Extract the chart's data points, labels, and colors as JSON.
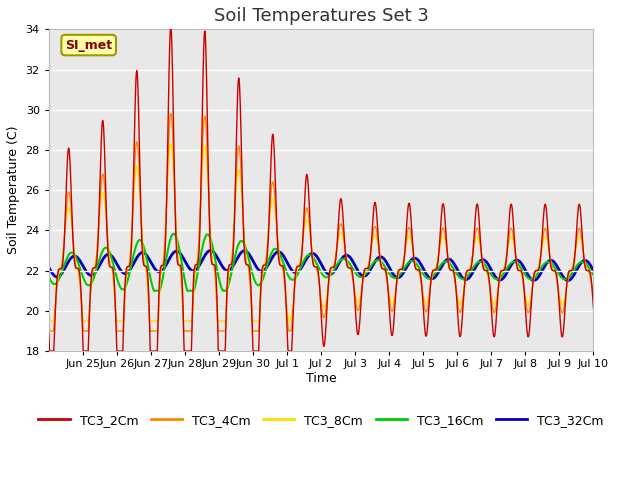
{
  "title": "Soil Temperatures Set 3",
  "xlabel": "Time",
  "ylabel": "Soil Temperature (C)",
  "ylim": [
    18,
    34
  ],
  "yticks": [
    18,
    20,
    22,
    24,
    26,
    28,
    30,
    32,
    34
  ],
  "series": [
    "TC3_2Cm",
    "TC3_4Cm",
    "TC3_8Cm",
    "TC3_16Cm",
    "TC3_32Cm"
  ],
  "colors": [
    "#cc0000",
    "#ff8800",
    "#ffdd00",
    "#00cc00",
    "#0000bb"
  ],
  "linewidths": [
    1.0,
    1.0,
    1.0,
    1.5,
    2.0
  ],
  "x_tick_labels": [
    "Jun 25",
    "Jun 26",
    "Jun 27",
    "Jun 28",
    "Jun 29",
    "Jun 30",
    "Jul 1",
    "Jul 2",
    "Jul 3",
    "Jul 4",
    "Jul 5",
    "Jul 6",
    "Jul 7",
    "Jul 8",
    "Jul 9",
    "Jul 10"
  ],
  "annotation_text": "SI_met",
  "annotation_bbox_facecolor": "#ffffaa",
  "annotation_bbox_edgecolor": "#999900",
  "background_color": "#e8e8e8",
  "grid_color": "#ffffff",
  "title_fontsize": 13,
  "label_fontsize": 9
}
